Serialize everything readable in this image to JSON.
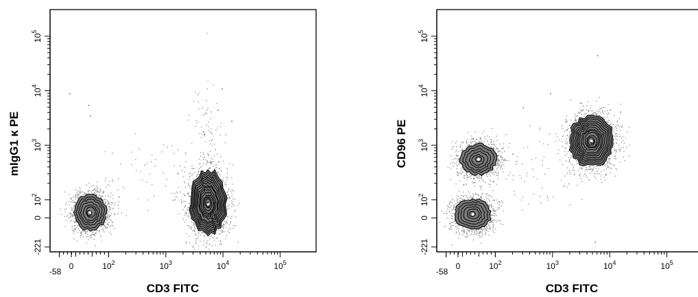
{
  "chart_data": [
    {
      "type": "scatter",
      "subtype": "flow-cytometry-contour",
      "title": "",
      "xlabel": "CD3  FITC",
      "ylabel": "mIgG1 κ  PE",
      "x_scale": "biexponential",
      "y_scale": "biexponential",
      "xlim": [
        -58,
        200000
      ],
      "ylim": [
        -221,
        200000
      ],
      "x_ticks": [
        {
          "value": -58,
          "base": "-58",
          "exp": ""
        },
        {
          "value": 0,
          "base": "0",
          "exp": ""
        },
        {
          "value": 100,
          "base": "10",
          "exp": "2"
        },
        {
          "value": 1000,
          "base": "10",
          "exp": "3"
        },
        {
          "value": 10000,
          "base": "10",
          "exp": "4"
        },
        {
          "value": 100000,
          "base": "10",
          "exp": "5"
        }
      ],
      "y_ticks": [
        {
          "value": -221,
          "base": "-221",
          "exp": ""
        },
        {
          "value": 0,
          "base": "0",
          "exp": ""
        },
        {
          "value": 100,
          "base": "10",
          "exp": "2"
        },
        {
          "value": 1000,
          "base": "10",
          "exp": "3"
        },
        {
          "value": 10000,
          "base": "10",
          "exp": "4"
        },
        {
          "value": 100000,
          "base": "10",
          "exp": "5"
        }
      ],
      "populations": [
        {
          "name": "",
          "x_center": 50,
          "y_center": 30,
          "x_spread": 0.55,
          "y_spread": 0.62,
          "levels": 7
        },
        {
          "name": "",
          "x_center": 5500,
          "y_center": 75,
          "x_spread": 0.62,
          "y_spread": 1.05,
          "levels": 14
        }
      ],
      "outliers": [
        [
          -10,
          9000
        ],
        [
          45,
          5500
        ],
        [
          50,
          3500
        ],
        [
          9500,
          11000
        ],
        [
          8000,
          4500
        ],
        [
          4500,
          1800
        ],
        [
          14000,
          2800
        ],
        [
          6000,
          500
        ]
      ],
      "grid": false,
      "legend": "none"
    },
    {
      "type": "scatter",
      "subtype": "flow-cytometry-contour",
      "title": "",
      "xlabel": "CD3  FITC",
      "ylabel": "CD96  PE",
      "x_scale": "biexponential",
      "y_scale": "biexponential",
      "xlim": [
        -58,
        200000
      ],
      "ylim": [
        -221,
        200000
      ],
      "x_ticks": [
        {
          "value": -58,
          "base": "-58",
          "exp": ""
        },
        {
          "value": 0,
          "base": "0",
          "exp": ""
        },
        {
          "value": 100,
          "base": "10",
          "exp": "2"
        },
        {
          "value": 1000,
          "base": "10",
          "exp": "3"
        },
        {
          "value": 10000,
          "base": "10",
          "exp": "4"
        },
        {
          "value": 100000,
          "base": "10",
          "exp": "5"
        }
      ],
      "y_ticks": [
        {
          "value": -221,
          "base": "-221",
          "exp": ""
        },
        {
          "value": 0,
          "base": "0",
          "exp": ""
        },
        {
          "value": 100,
          "base": "10",
          "exp": "2"
        },
        {
          "value": 1000,
          "base": "10",
          "exp": "3"
        },
        {
          "value": 10000,
          "base": "10",
          "exp": "4"
        },
        {
          "value": 100000,
          "base": "10",
          "exp": "5"
        }
      ],
      "populations": [
        {
          "name": "",
          "x_center": 40,
          "y_center": 20,
          "x_spread": 0.6,
          "y_spread": 0.55,
          "levels": 6
        },
        {
          "name": "",
          "x_center": 55,
          "y_center": 550,
          "x_spread": 0.6,
          "y_spread": 0.55,
          "levels": 6
        },
        {
          "name": "",
          "x_center": 4800,
          "y_center": 1200,
          "x_spread": 0.75,
          "y_spread": 0.9,
          "levels": 13
        }
      ],
      "outliers": [
        [
          6000,
          45000
        ],
        [
          900,
          9000
        ],
        [
          300,
          5000
        ],
        [
          5500,
          -180
        ],
        [
          2500,
          1500
        ],
        [
          200,
          700
        ]
      ],
      "grid": false,
      "legend": "none"
    }
  ]
}
